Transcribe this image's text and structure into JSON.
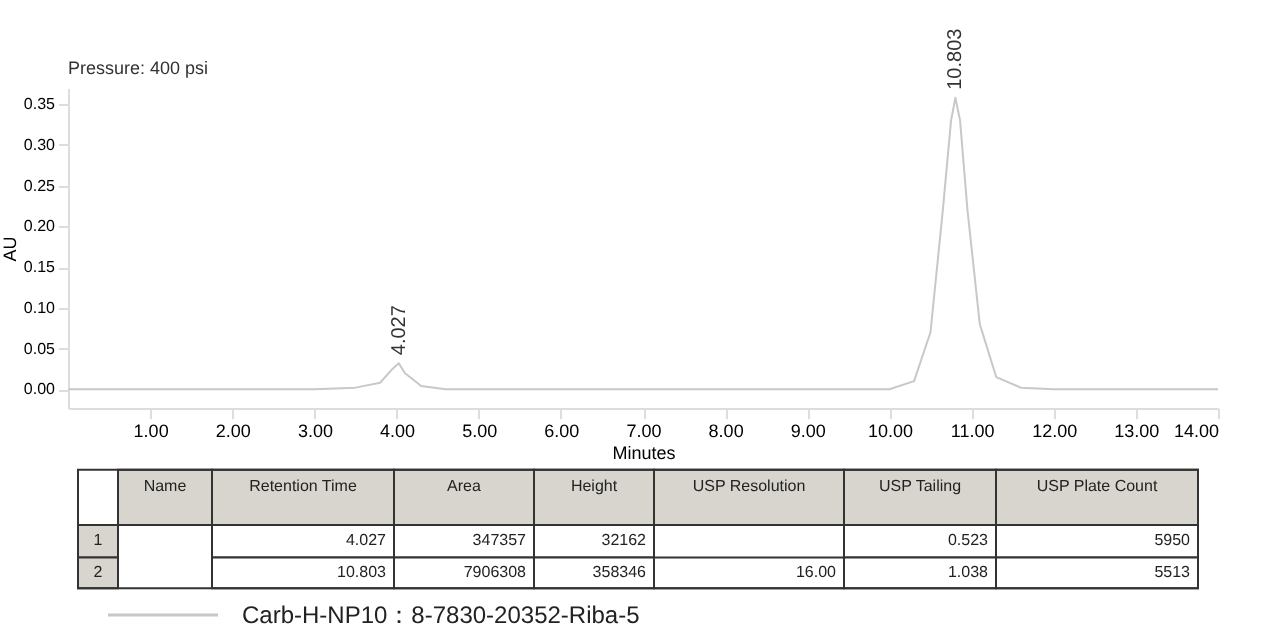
{
  "chart_data": {
    "type": "line",
    "xlabel": "Minutes",
    "ylabel": "AU",
    "legend": "bottom",
    "grid": false,
    "x": [
      0,
      3.0,
      3.5,
      3.8,
      3.95,
      4.027,
      4.1,
      4.3,
      4.6,
      10.0,
      10.3,
      10.5,
      10.65,
      10.75,
      10.803,
      10.86,
      10.95,
      11.1,
      11.3,
      11.6,
      12.0,
      14.0
    ],
    "series": [
      {
        "name": "Carb-H-NP10：8-7830-20352-Riba-5",
        "color": "#c8c8c8",
        "values": [
          0,
          0,
          0.002,
          0.008,
          0.025,
          0.032,
          0.02,
          0.004,
          0,
          0,
          0.01,
          0.07,
          0.22,
          0.33,
          0.358,
          0.33,
          0.22,
          0.08,
          0.015,
          0.002,
          0,
          0
        ]
      }
    ],
    "xlim": [
      0,
      14
    ],
    "ylim": [
      -0.023,
      0.37
    ],
    "xticks": [
      {
        "value": 1,
        "label": "1.00"
      },
      {
        "value": 2,
        "label": "2.00"
      },
      {
        "value": 3,
        "label": "3.00"
      },
      {
        "value": 4,
        "label": "4.00"
      },
      {
        "value": 5,
        "label": "5.00"
      },
      {
        "value": 6,
        "label": "6.00"
      },
      {
        "value": 7,
        "label": "7.00"
      },
      {
        "value": 8,
        "label": "8.00"
      },
      {
        "value": 9,
        "label": "9.00"
      },
      {
        "value": 10,
        "label": "10.00"
      },
      {
        "value": 11,
        "label": "11.00"
      },
      {
        "value": 12,
        "label": "12.00"
      },
      {
        "value": 13,
        "label": "13.00"
      },
      {
        "value": 14,
        "label": "14.00"
      }
    ],
    "yticks": [
      {
        "value": 0,
        "label": "0.00"
      },
      {
        "value": 0.05,
        "label": "0.05"
      },
      {
        "value": 0.1,
        "label": "0.10"
      },
      {
        "value": 0.15,
        "label": "0.15"
      },
      {
        "value": 0.2,
        "label": "0.20"
      },
      {
        "value": 0.25,
        "label": "0.25"
      },
      {
        "value": 0.3,
        "label": "0.30"
      },
      {
        "value": 0.35,
        "label": "0.35"
      }
    ],
    "annotations": [
      "Pressure: 400 psi",
      {
        "text": "4.027",
        "x": 4.027,
        "y": 0.032
      },
      {
        "text": "10.803",
        "x": 10.803,
        "y": 0.358
      },
      "Name",
      "Retention Time",
      "Area",
      "Height",
      "USP Resolution",
      "USP Tailing",
      "USP Plate Count",
      "1",
      "4.027",
      "347357",
      "32162",
      "0.523",
      "5950",
      "2",
      "10.803",
      "7906308",
      "358346",
      "16.00",
      "1.038",
      "5513"
    ]
  }
}
